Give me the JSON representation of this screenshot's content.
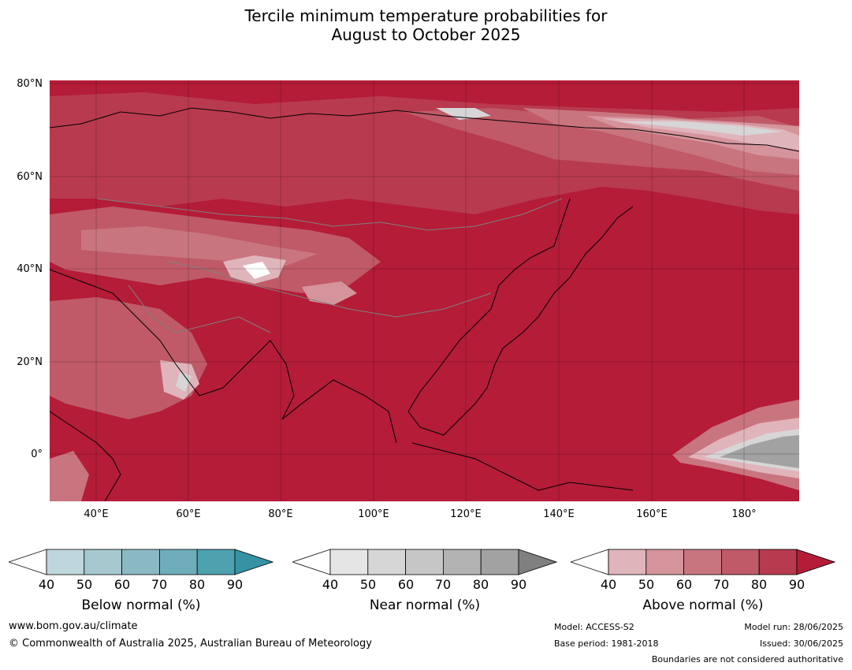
{
  "title_line1": "Tercile minimum temperature probabilities for",
  "title_line2": "August to October 2025",
  "lat_labels": [
    "80°N",
    "60°N",
    "40°N",
    "20°N",
    "0°"
  ],
  "lon_labels": [
    "40°E",
    "60°E",
    "80°E",
    "100°E",
    "120°E",
    "140°E",
    "160°E",
    "180°"
  ],
  "colorbars": [
    {
      "title": "Below normal (%)",
      "ticks": [
        "40",
        "50",
        "60",
        "70",
        "80",
        "90"
      ],
      "colors": [
        "#c0d6dd",
        "#a6c8cf",
        "#8bb9c3",
        "#6eaeba",
        "#4ea2b0",
        "#3593a3"
      ]
    },
    {
      "title": "Near normal (%)",
      "ticks": [
        "40",
        "50",
        "60",
        "70",
        "80",
        "90"
      ],
      "colors": [
        "#e5e5e5",
        "#d6d6d6",
        "#c6c6c6",
        "#b3b3b3",
        "#a2a2a2",
        "#808080"
      ]
    },
    {
      "title": "Above normal (%)",
      "ticks": [
        "40",
        "50",
        "60",
        "70",
        "80",
        "90"
      ],
      "colors": [
        "#e0b4bb",
        "#d5949c",
        "#c97580",
        "#c05a68",
        "#b83a4e",
        "#b41c38"
      ]
    }
  ],
  "footer": {
    "website": "www.bom.gov.au/climate",
    "copyright": "© Commonwealth of Australia 2025, Australian Bureau of Meteorology",
    "model": "Model: ACCESS-S2",
    "base_period": "Base period: 1981-2018",
    "model_run": "Model run: 28/06/2025",
    "issued": "Issued: 30/06/2025",
    "disclaimer": "Boundaries are not considered authoritative"
  },
  "map_colors": {
    "ocean_above": "#b41c38",
    "above_80": "#b83a4e",
    "above_70": "#c05a68",
    "above_60": "#c97580",
    "above_50": "#d5949c",
    "above_40": "#e0b4bb",
    "near": "#a2a2a2",
    "near_light": "#d6d6d6",
    "coastline": "#000000",
    "border": "#808080"
  }
}
